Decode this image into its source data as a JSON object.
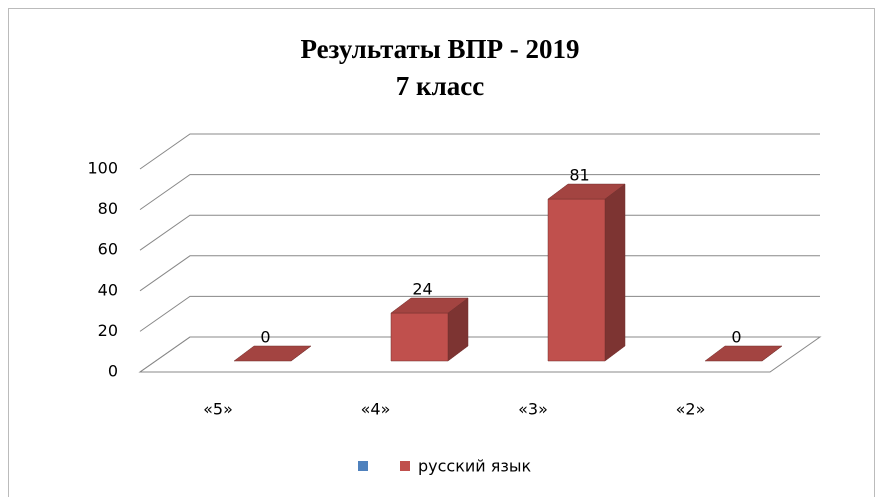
{
  "chart_data": {
    "type": "bar3d",
    "title": "Результаты ВПР - 2019",
    "subtitle": "7 класс",
    "categories": [
      "«5»",
      "«4»",
      "«3»",
      "«2»"
    ],
    "series": [
      {
        "name": "русский язык",
        "color": "#c0504d",
        "values": [
          0,
          24,
          81,
          0
        ]
      }
    ],
    "ylim": [
      0,
      100
    ],
    "yticks": [
      0,
      20,
      40,
      60,
      80,
      100
    ],
    "grid": true,
    "legend": "bottom"
  }
}
